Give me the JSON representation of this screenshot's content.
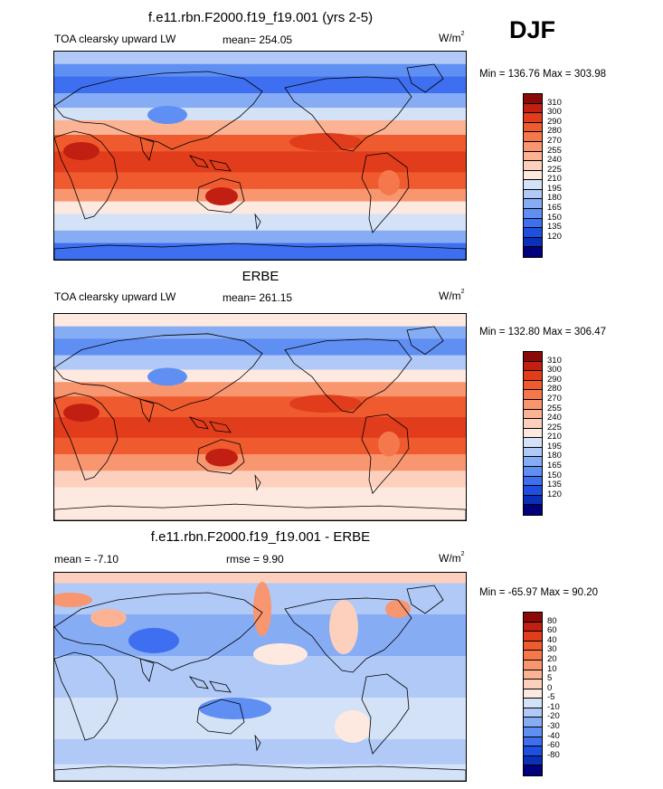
{
  "season": "DJF",
  "colors": {
    "base_palette": [
      "#00007d",
      "#0a2fb8",
      "#1e4fe0",
      "#3d6ff0",
      "#5f8ff3",
      "#86acf4",
      "#b0c9f6",
      "#d4e2f7",
      "#fde9df",
      "#fcd0bd",
      "#fbb394",
      "#f89670",
      "#f5784c",
      "#ef5a2e",
      "#e13c1c",
      "#c11f12",
      "#8c0a06"
    ],
    "diff_palette": [
      "#00007d",
      "#0a2fb8",
      "#1e4fe0",
      "#3d6ff0",
      "#5f8ff3",
      "#86acf4",
      "#b0c9f6",
      "#d4e2f7",
      "#fde9df",
      "#fcd0bd",
      "#fbb394",
      "#f89670",
      "#f5784c",
      "#ef5a2e",
      "#e13c1c",
      "#c11f12",
      "#8c0a06"
    ]
  },
  "panels": [
    {
      "title": "f.e11.rbn.F2000.f19_f19.001 (yrs 2-5)",
      "left_label": "TOA clearsky upward LW",
      "center_label": "mean= 254.05",
      "units_main": "W/m",
      "units_exp": "2",
      "minmax": "Min = 136.76 Max = 303.98",
      "colorbar_labels": [
        "310",
        "300",
        "290",
        "280",
        "270",
        "255",
        "240",
        "225",
        "210",
        "195",
        "180",
        "165",
        "150",
        "135",
        "120"
      ],
      "field": "model"
    },
    {
      "title": "ERBE",
      "left_label": "TOA clearsky upward LW",
      "center_label": "mean= 261.15",
      "units_main": "W/m",
      "units_exp": "2",
      "minmax": "Min = 132.80 Max = 306.47",
      "colorbar_labels": [
        "310",
        "300",
        "290",
        "280",
        "270",
        "255",
        "240",
        "225",
        "210",
        "195",
        "180",
        "165",
        "150",
        "135",
        "120"
      ],
      "field": "obs"
    },
    {
      "title": "f.e11.rbn.F2000.f19_f19.001 - ERBE",
      "left_label": "mean =  -7.10",
      "center_label": "rmse =    9.90",
      "units_main": "W/m",
      "units_exp": "2",
      "minmax": "Min = -65.97 Max =  90.20",
      "colorbar_labels": [
        "80",
        "60",
        "40",
        "30",
        "20",
        "10",
        "5",
        "0",
        "-5",
        "-10",
        "-20",
        "-30",
        "-40",
        "-60",
        "-80"
      ],
      "field": "diff"
    }
  ]
}
